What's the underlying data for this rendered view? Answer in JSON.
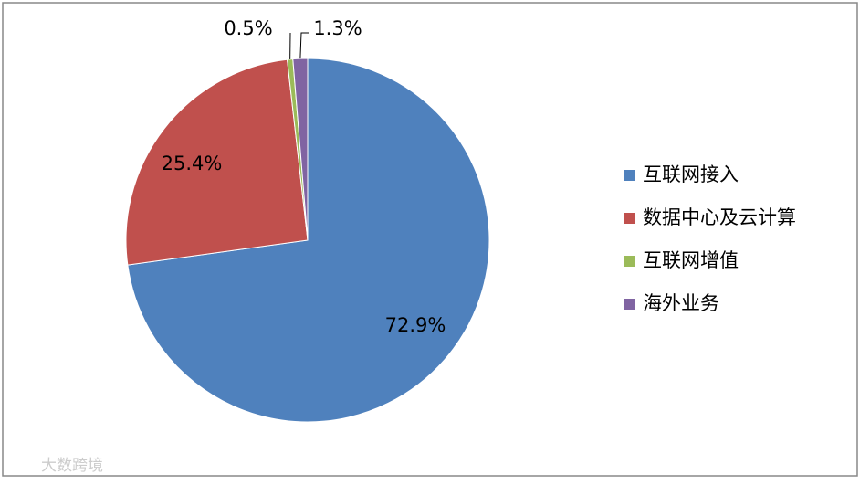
{
  "chart_data": {
    "type": "pie",
    "categories": [
      "互联网接入",
      "数据中心及云计算",
      "互联网增值",
      "海外业务"
    ],
    "values": [
      72.9,
      25.4,
      0.5,
      1.3
    ],
    "value_labels": [
      "72.9%",
      "25.4%",
      "0.5%",
      "1.3%"
    ],
    "colors": [
      "#4f81bd",
      "#c0504d",
      "#9bbb59",
      "#8064a2"
    ],
    "legend": "right"
  },
  "watermark": "大数跨境"
}
